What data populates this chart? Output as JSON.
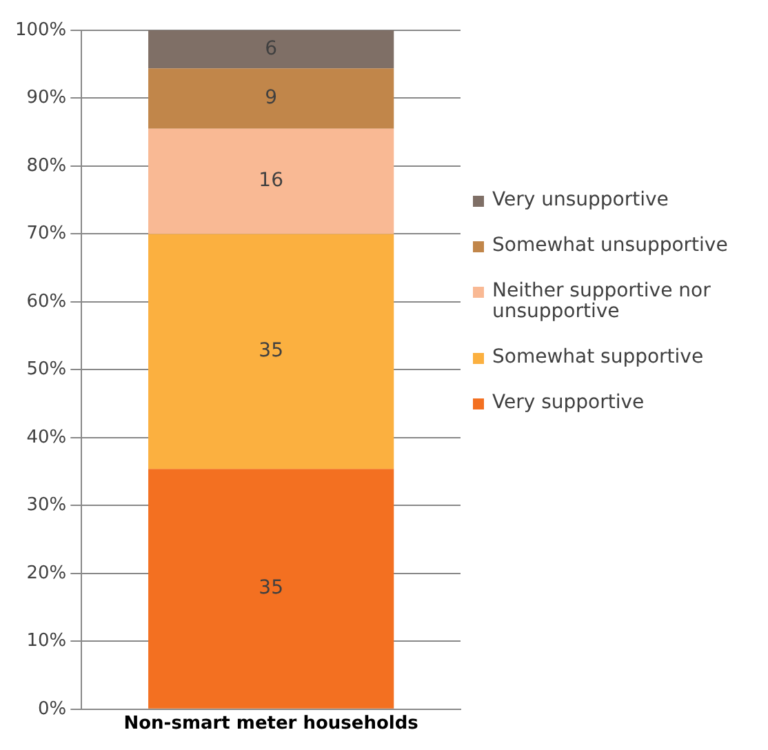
{
  "chart_data": {
    "type": "bar",
    "stacked": true,
    "categories": [
      "Non-smart meter households"
    ],
    "series": [
      {
        "name": "Very supportive",
        "color": "#f37021",
        "values": [
          35.4
        ],
        "value_labels": [
          "35"
        ]
      },
      {
        "name": "Somewhat supportive",
        "color": "#fbb040",
        "values": [
          34.6
        ],
        "value_labels": [
          "35"
        ]
      },
      {
        "name": "Neither supportive nor unsupportive",
        "color": "#f9b994",
        "values": [
          15.5
        ],
        "value_labels": [
          "16"
        ]
      },
      {
        "name": "Somewhat unsupportive",
        "color": "#c1864a",
        "values": [
          8.9
        ],
        "value_labels": [
          "9"
        ]
      },
      {
        "name": "Very unsupportive",
        "color": "#7f6f66",
        "values": [
          5.6
        ],
        "value_labels": [
          "6"
        ]
      }
    ],
    "ylim": [
      0,
      100
    ],
    "yticks": [
      {
        "value": 0,
        "label": "0%"
      },
      {
        "value": 10,
        "label": "10%"
      },
      {
        "value": 20,
        "label": "20%"
      },
      {
        "value": 30,
        "label": "30%"
      },
      {
        "value": 40,
        "label": "40%"
      },
      {
        "value": 50,
        "label": "50%"
      },
      {
        "value": 60,
        "label": "60%"
      },
      {
        "value": 70,
        "label": "70%"
      },
      {
        "value": 80,
        "label": "80%"
      },
      {
        "value": 90,
        "label": "90%"
      },
      {
        "value": 100,
        "label": "100%"
      }
    ],
    "grid": "y",
    "legend": "right"
  }
}
